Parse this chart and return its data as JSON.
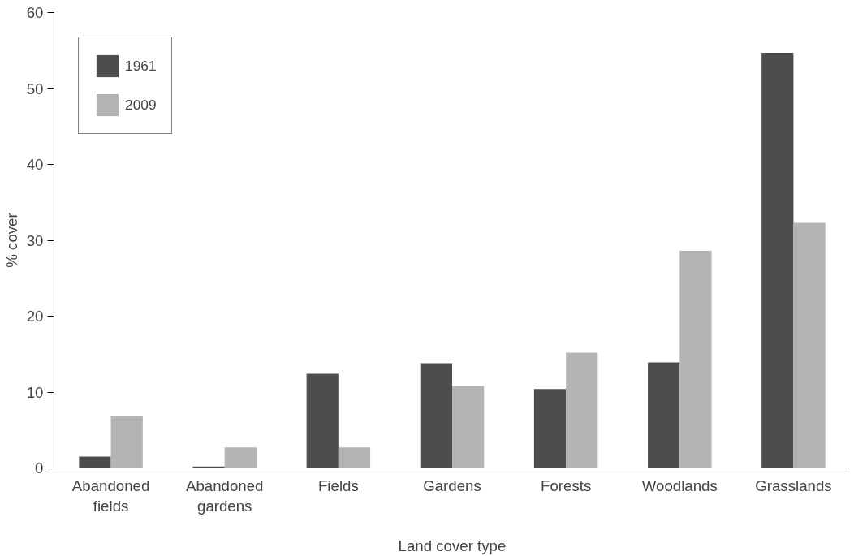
{
  "chart_data": {
    "type": "bar",
    "xlabel": "Land cover type",
    "ylabel": "% cover",
    "categories": [
      "Abandoned fields",
      "Abandoned gardens",
      "Fields",
      "Gardens",
      "Forests",
      "Woodlands",
      "Grasslands"
    ],
    "series": [
      {
        "name": "1961",
        "color": "#4d4d4d",
        "values": [
          1.5,
          0.2,
          12.4,
          13.8,
          10.4,
          13.9,
          54.7
        ]
      },
      {
        "name": "2009",
        "color": "#b3b3b3",
        "values": [
          6.8,
          2.7,
          2.7,
          10.8,
          15.2,
          28.6,
          32.3
        ]
      }
    ],
    "ylim": [
      0,
      60
    ],
    "yticks": [
      0,
      10,
      20,
      30,
      40,
      50,
      60
    ],
    "grid": false,
    "legend": "top left"
  }
}
